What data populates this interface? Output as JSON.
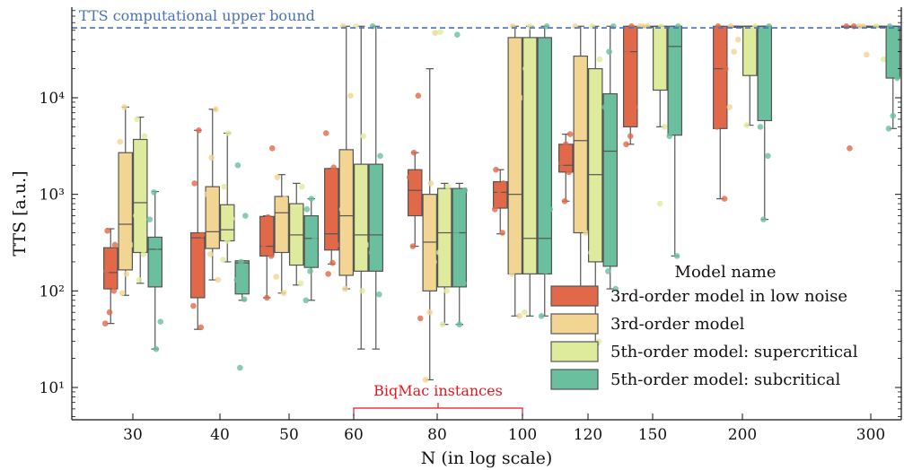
{
  "chart_data": {
    "type": "box",
    "xlabel": "N (in log scale)",
    "ylabel": "TTS [a.u.]",
    "x_scale": "log",
    "y_scale": "log",
    "x_ticks": [
      30,
      40,
      50,
      60,
      80,
      100,
      120,
      150,
      200,
      300
    ],
    "y_ticks": [
      {
        "value": 10,
        "label": "10¹"
      },
      {
        "value": 100,
        "label": "10²"
      },
      {
        "value": 1000,
        "label": "10³"
      },
      {
        "value": 10000,
        "label": "10⁴"
      }
    ],
    "ylim": [
      4.6,
      80000
    ],
    "upper_bound": {
      "value": 53000,
      "label": "TTS computational upper bound",
      "color": "#4a72b8"
    },
    "annotation": {
      "label": "BiqMac instances",
      "x_range": [
        60,
        100
      ],
      "color": "#e8141e"
    },
    "legend": {
      "title": "Model name",
      "position": "lower-right"
    },
    "series": [
      {
        "name": "3rd-order model in low noise",
        "color": "#e1694a"
      },
      {
        "name": "3rd-order model",
        "color": "#f2d593"
      },
      {
        "name": "5th-order model: supercritical",
        "color": "#dfeb9c"
      },
      {
        "name": "5th-order model: subcritical",
        "color": "#6abf9e"
      }
    ],
    "boxes": [
      {
        "n": 30,
        "series": 0,
        "whislo": 46,
        "q1": 105,
        "med": 155,
        "q3": 280,
        "whishi": 440,
        "points": [
          46,
          60,
          100,
          160,
          220,
          300,
          420
        ]
      },
      {
        "n": 30,
        "series": 1,
        "whislo": 90,
        "q1": 165,
        "med": 490,
        "q3": 2700,
        "whishi": 8000,
        "points": [
          95,
          150,
          300,
          700,
          1500,
          3500,
          8000
        ]
      },
      {
        "n": 30,
        "series": 2,
        "whislo": 120,
        "q1": 250,
        "med": 820,
        "q3": 3700,
        "whishi": 6300,
        "points": [
          130,
          240,
          600,
          1200,
          4000,
          6000
        ]
      },
      {
        "n": 30,
        "series": 3,
        "whislo": 25,
        "q1": 110,
        "med": 270,
        "q3": 360,
        "whishi": 1070,
        "points": [
          25,
          48,
          140,
          290,
          550,
          1050
        ]
      },
      {
        "n": 40,
        "series": 0,
        "whislo": 40,
        "q1": 85,
        "med": 355,
        "q3": 400,
        "whishi": 4600,
        "points": [
          42,
          70,
          120,
          380,
          1300,
          4600
        ]
      },
      {
        "n": 40,
        "series": 1,
        "whislo": 130,
        "q1": 275,
        "med": 410,
        "q3": 1200,
        "whishi": 7600,
        "points": [
          130,
          240,
          480,
          1000,
          2400,
          7600
        ]
      },
      {
        "n": 40,
        "series": 2,
        "whislo": 200,
        "q1": 330,
        "med": 430,
        "q3": 780,
        "whishi": 4300,
        "points": [
          210,
          330,
          560,
          1200,
          4300
        ]
      },
      {
        "n": 40,
        "series": 3,
        "whislo": 80,
        "q1": 93,
        "med": 195,
        "q3": 205,
        "whishi": 205,
        "points": [
          16,
          82,
          130,
          200,
          600,
          2000
        ]
      },
      {
        "n": 50,
        "series": 0,
        "whislo": 85,
        "q1": 230,
        "med": 290,
        "q3": 590,
        "whishi": 600,
        "points": [
          85,
          230,
          300,
          580,
          3000
        ]
      },
      {
        "n": 50,
        "series": 1,
        "whislo": 95,
        "q1": 250,
        "med": 645,
        "q3": 950,
        "whishi": 1600,
        "points": [
          95,
          140,
          400,
          900,
          1500
        ]
      },
      {
        "n": 50,
        "series": 2,
        "whislo": 115,
        "q1": 185,
        "med": 380,
        "q3": 800,
        "whishi": 1300,
        "points": [
          120,
          260,
          600,
          1200
        ]
      },
      {
        "n": 50,
        "series": 3,
        "whislo": 80,
        "q1": 175,
        "med": 350,
        "q3": 600,
        "whishi": 900,
        "points": [
          80,
          160,
          360,
          700,
          900
        ]
      },
      {
        "n": 60,
        "series": 0,
        "whislo": 190,
        "q1": 265,
        "med": 390,
        "q3": 1850,
        "whishi": 1850,
        "points": [
          150,
          195,
          300,
          700,
          1900,
          4300
        ]
      },
      {
        "n": 60,
        "series": 1,
        "whislo": 105,
        "q1": 145,
        "med": 600,
        "q3": 2900,
        "whishi": 55000,
        "points": [
          105,
          200,
          700,
          2000,
          10500,
          55000
        ]
      },
      {
        "n": 60,
        "series": 2,
        "whislo": 25,
        "q1": 160,
        "med": 380,
        "q3": 2050,
        "whishi": 55000,
        "points": [
          100,
          300,
          900,
          4000,
          55000
        ]
      },
      {
        "n": 60,
        "series": 3,
        "whislo": 25,
        "q1": 160,
        "med": 380,
        "q3": 2050,
        "whishi": 55000,
        "points": [
          92,
          250,
          900,
          2500,
          55000
        ]
      },
      {
        "n": 80,
        "series": 0,
        "whislo": 290,
        "q1": 600,
        "med": 1100,
        "q3": 1800,
        "whishi": 2700,
        "points": [
          52,
          290,
          800,
          1500,
          2700,
          10500
        ]
      },
      {
        "n": 80,
        "series": 1,
        "whislo": 12,
        "q1": 100,
        "med": 320,
        "q3": 1000,
        "whishi": 20000,
        "points": [
          12,
          60,
          200,
          600,
          1300,
          47000
        ]
      },
      {
        "n": 80,
        "series": 2,
        "whislo": 45,
        "q1": 110,
        "med": 400,
        "q3": 1150,
        "whishi": 1300,
        "points": [
          45,
          100,
          250,
          700,
          1200,
          48000
        ]
      },
      {
        "n": 80,
        "series": 3,
        "whislo": 45,
        "q1": 110,
        "med": 400,
        "q3": 1150,
        "whishi": 1300,
        "points": [
          45,
          120,
          400,
          900,
          1100,
          45000
        ]
      },
      {
        "n": 100,
        "series": 0,
        "whislo": 390,
        "q1": 720,
        "med": 1050,
        "q3": 1350,
        "whishi": 1800,
        "points": [
          400,
          700,
          1100,
          1300,
          1800
        ]
      },
      {
        "n": 100,
        "series": 1,
        "whislo": 55,
        "q1": 150,
        "med": 1000,
        "q3": 42000,
        "whishi": 55000,
        "points": [
          55,
          150,
          900,
          10000,
          55000
        ]
      },
      {
        "n": 100,
        "series": 2,
        "whislo": 55,
        "q1": 150,
        "med": 350,
        "q3": 42000,
        "whishi": 55000,
        "points": [
          60,
          200,
          1500,
          20000,
          55000
        ]
      },
      {
        "n": 100,
        "series": 3,
        "whislo": 55,
        "q1": 150,
        "med": 350,
        "q3": 42000,
        "whishi": 55000,
        "points": [
          55,
          160,
          700,
          8000,
          55000
        ]
      },
      {
        "n": 120,
        "series": 0,
        "whislo": 850,
        "q1": 1700,
        "med": 2000,
        "q3": 3300,
        "whishi": 4200,
        "points": [
          850,
          1700,
          2100,
          3300,
          4200
        ]
      },
      {
        "n": 120,
        "series": 1,
        "whislo": 95,
        "q1": 400,
        "med": 3600,
        "q3": 27000,
        "whishi": 55000,
        "points": [
          95,
          400,
          2000,
          15000,
          55000
        ]
      },
      {
        "n": 120,
        "series": 2,
        "whislo": 28,
        "q1": 200,
        "med": 1600,
        "q3": 20000,
        "whishi": 55000,
        "points": [
          30,
          250,
          3000,
          25000,
          55000
        ]
      },
      {
        "n": 120,
        "series": 3,
        "whislo": 105,
        "q1": 180,
        "med": 2800,
        "q3": 11000,
        "whishi": 55000,
        "points": [
          105,
          160,
          1200,
          8000,
          30000,
          55000
        ]
      },
      {
        "n": 150,
        "series": 0,
        "whislo": 3300,
        "q1": 5000,
        "med": 30000,
        "q3": 55000,
        "whishi": 55000,
        "points": [
          3300,
          4000,
          8000,
          30000,
          55000
        ]
      },
      {
        "n": 150,
        "series": 1,
        "whislo": 55000,
        "q1": 55000,
        "med": 55000,
        "q3": 55000,
        "whishi": 55000,
        "points": [
          55000,
          55000,
          55000
        ]
      },
      {
        "n": 150,
        "series": 2,
        "whislo": 5000,
        "q1": 12000,
        "med": 55000,
        "q3": 55000,
        "whishi": 55000,
        "points": [
          800,
          5000,
          14000,
          55000
        ]
      },
      {
        "n": 150,
        "series": 3,
        "whislo": 230,
        "q1": 4100,
        "med": 34000,
        "q3": 55000,
        "whishi": 55000,
        "points": [
          230,
          4000,
          12000,
          55000
        ]
      },
      {
        "n": 200,
        "series": 0,
        "whislo": 900,
        "q1": 4800,
        "med": 20000,
        "q3": 55000,
        "whishi": 55000,
        "points": [
          900,
          5000,
          7000,
          20000,
          55000
        ]
      },
      {
        "n": 200,
        "series": 1,
        "whislo": 55000,
        "q1": 55000,
        "med": 55000,
        "q3": 55000,
        "whishi": 55000,
        "points": [
          8000,
          30000,
          40000,
          55000
        ]
      },
      {
        "n": 200,
        "series": 2,
        "whislo": 5200,
        "q1": 17000,
        "med": 55000,
        "q3": 55000,
        "whishi": 55000,
        "points": [
          5200,
          20000,
          55000
        ]
      },
      {
        "n": 200,
        "series": 3,
        "whislo": 550,
        "q1": 5800,
        "med": 55000,
        "q3": 55000,
        "whishi": 55000,
        "points": [
          550,
          2500,
          5000,
          20000,
          55000
        ]
      },
      {
        "n": 300,
        "series": 0,
        "whislo": 55000,
        "q1": 55000,
        "med": 55000,
        "q3": 55000,
        "whishi": 55000,
        "points": [
          3000,
          55000,
          55000
        ]
      },
      {
        "n": 300,
        "series": 1,
        "whislo": 55000,
        "q1": 55000,
        "med": 55000,
        "q3": 55000,
        "whishi": 55000,
        "points": [
          28000,
          55000,
          55000
        ]
      },
      {
        "n": 300,
        "series": 2,
        "whislo": 55000,
        "q1": 55000,
        "med": 55000,
        "q3": 55000,
        "whishi": 55000,
        "points": [
          25000,
          55000
        ]
      },
      {
        "n": 300,
        "series": 3,
        "whislo": 4800,
        "q1": 16000,
        "med": 55000,
        "q3": 55000,
        "whishi": 55000,
        "points": [
          4800,
          6500,
          16000,
          55000
        ]
      }
    ]
  }
}
